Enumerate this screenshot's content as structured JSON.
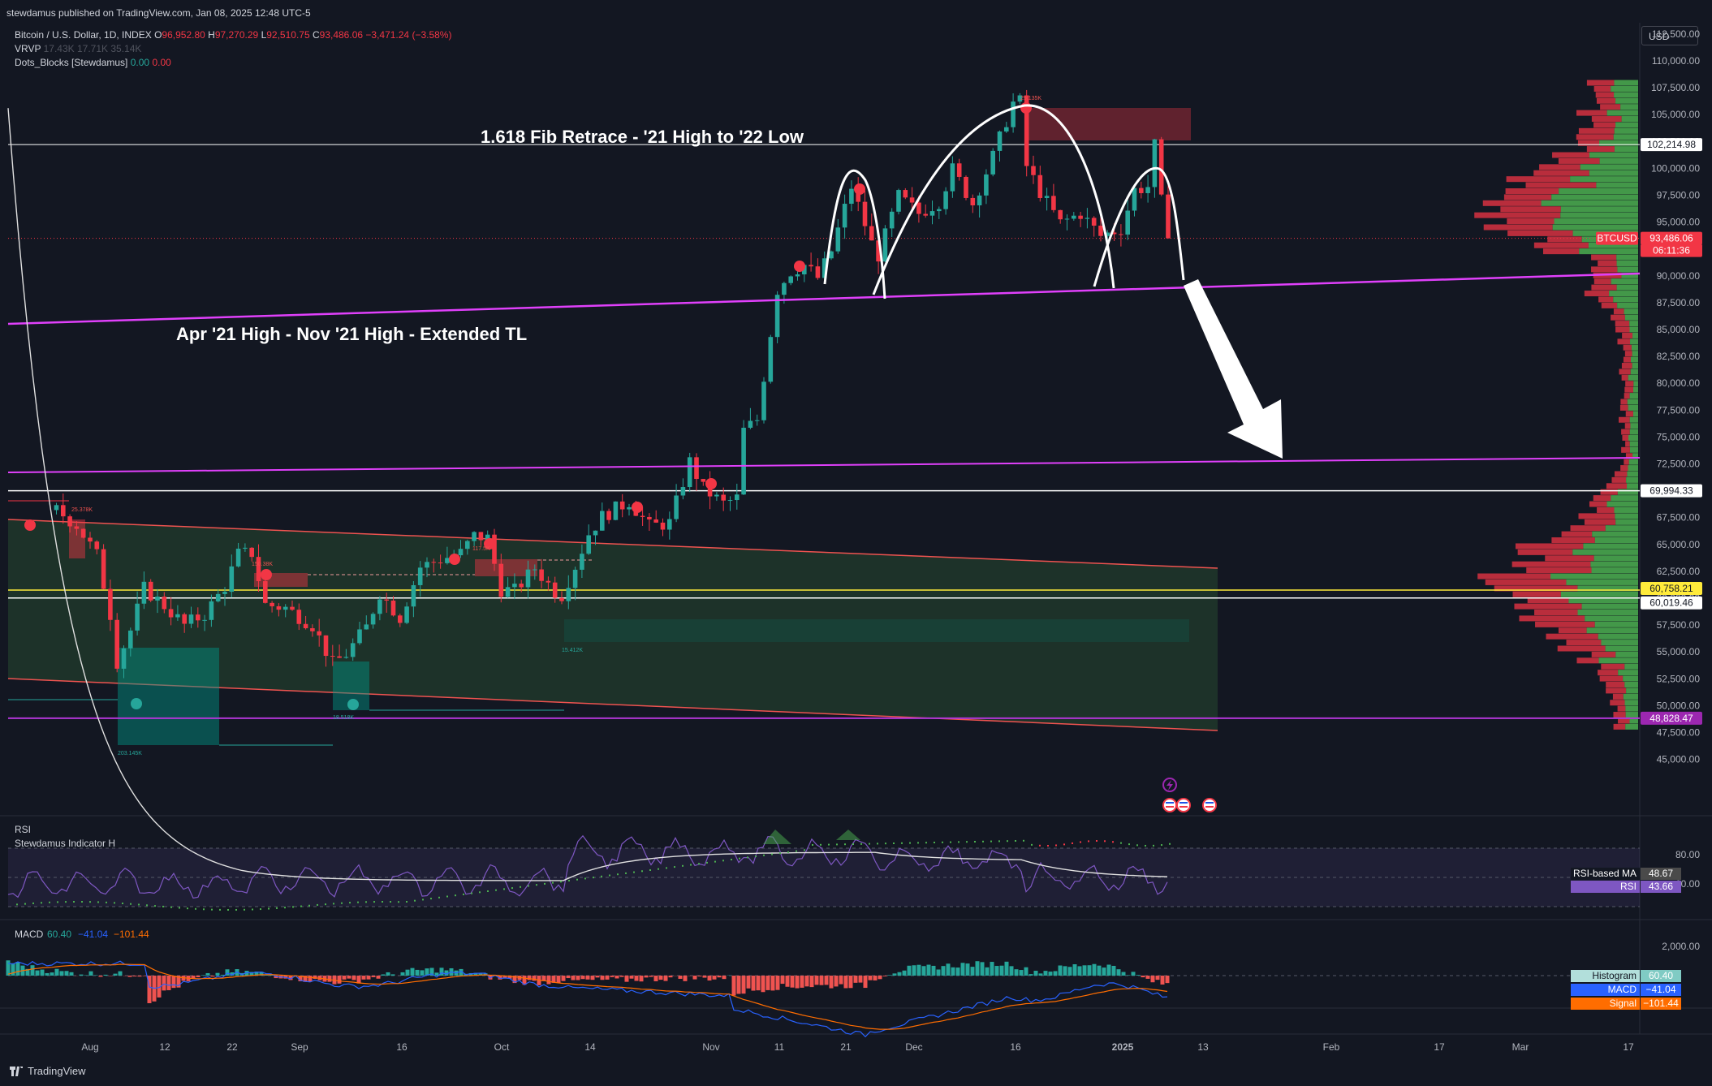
{
  "header": {
    "published": "stewdamus published on TradingView.com, Jan 08, 2025 12:48 UTC-5",
    "symbol": "Bitcoin / U.S. Dollar, 1D, INDEX",
    "ohlc": {
      "o_label": "O",
      "o": "96,952.80",
      "h_label": "H",
      "h": "97,270.29",
      "l_label": "L",
      "l": "92,510.75",
      "c_label": "C",
      "c": "93,486.06",
      "chg": "−3,471.24 (−3.58%)"
    },
    "vrvp_label": "VRVP",
    "vrvp_values": [
      "17.43K",
      "17.71K",
      "35.14K"
    ],
    "dots_label": "Dots_Blocks [Stewdamus]",
    "dots_values": [
      "0.00",
      "0.00"
    ],
    "currency": "USD"
  },
  "brand": "TradingView",
  "colors": {
    "bg": "#131722",
    "up": "#26a69a",
    "down": "#f23645",
    "magenta": "#e040fb",
    "yellow": "#ffeb3b",
    "white": "#ffffff",
    "channel": "#ef5350"
  },
  "chart_data": [
    {
      "type": "candlestick",
      "title": "Bitcoin / U.S. Dollar, 1D, INDEX",
      "x_ticks": [
        "Aug",
        "12",
        "22",
        "Sep",
        "16",
        "Oct",
        "14",
        "Nov",
        "11",
        "21",
        "Dec",
        "16",
        "2025",
        "13",
        "Feb",
        "17",
        "Mar",
        "17"
      ],
      "y_ticks": [
        "112,500.00",
        "110,000.00",
        "107,500.00",
        "105,000.00",
        "102,500.00",
        "100,000.00",
        "97,500.00",
        "95,000.00",
        "92,500.00",
        "90,000.00",
        "87,500.00",
        "85,000.00",
        "82,500.00",
        "80,000.00",
        "77,500.00",
        "75,000.00",
        "72,500.00",
        "70,000.00",
        "67,500.00",
        "65,000.00",
        "62,500.00",
        "60,000.00",
        "57,500.00",
        "55,000.00",
        "52,500.00",
        "50,000.00",
        "47,500.00",
        "45,000.00"
      ],
      "ylim": [
        43500,
        114000
      ],
      "scale": "linear",
      "close_series_approx": [
        [
          "Jul 27",
          68200
        ],
        [
          "Jul 30",
          66800
        ],
        [
          "Aug 2",
          64000
        ],
        [
          "Aug 4",
          58500
        ],
        [
          "Aug 5",
          54100
        ],
        [
          "Aug 7",
          57000
        ],
        [
          "Aug 9",
          60900
        ],
        [
          "Aug 12",
          59300
        ],
        [
          "Aug 15",
          57500
        ],
        [
          "Aug 18",
          58500
        ],
        [
          "Aug 21",
          61100
        ],
        [
          "Aug 23",
          64100
        ],
        [
          "Aug 25",
          64200
        ],
        [
          "Aug 27",
          59400
        ],
        [
          "Aug 30",
          59100
        ],
        [
          "Sep 3",
          57500
        ],
        [
          "Sep 6",
          53900
        ],
        [
          "Sep 8",
          54800
        ],
        [
          "Sep 11",
          57300
        ],
        [
          "Sep 13",
          60500
        ],
        [
          "Sep 16",
          58200
        ],
        [
          "Sep 19",
          62900
        ],
        [
          "Sep 22",
          63600
        ],
        [
          "Sep 25",
          64200
        ],
        [
          "Sep 27",
          65800
        ],
        [
          "Sep 29",
          65600
        ],
        [
          "Oct 1",
          60800
        ],
        [
          "Oct 3",
          60700
        ],
        [
          "Oct 6",
          62800
        ],
        [
          "Oct 9",
          60600
        ],
        [
          "Oct 10",
          60300
        ],
        [
          "Oct 12",
          63000
        ],
        [
          "Oct 14",
          66000
        ],
        [
          "Oct 16",
          67600
        ],
        [
          "Oct 20",
          69000
        ],
        [
          "Oct 23",
          66700
        ],
        [
          "Oct 26",
          67000
        ],
        [
          "Oct 29",
          72700
        ],
        [
          "Oct 31",
          70200
        ],
        [
          "Nov 3",
          68800
        ],
        [
          "Nov 5",
          69300
        ],
        [
          "Nov 6",
          75600
        ],
        [
          "Nov 8",
          76600
        ],
        [
          "Nov 11",
          88700
        ],
        [
          "Nov 13",
          90400
        ],
        [
          "Nov 15",
          91000
        ],
        [
          "Nov 17",
          89800
        ],
        [
          "Nov 19",
          92300
        ],
        [
          "Nov 22",
          98300
        ],
        [
          "Nov 25",
          93000
        ],
        [
          "Nov 26",
          91900
        ],
        [
          "Nov 29",
          97400
        ],
        [
          "Dec 2",
          95800
        ],
        [
          "Dec 5",
          96900
        ],
        [
          "Dec 7",
          99900
        ],
        [
          "Dec 10",
          96700
        ],
        [
          "Dec 13",
          101100
        ],
        [
          "Dec 16",
          106100
        ],
        [
          "Dec 17",
          106200
        ],
        [
          "Dec 18",
          100200
        ],
        [
          "Dec 20",
          97800
        ],
        [
          "Dec 23",
          94900
        ],
        [
          "Dec 26",
          95800
        ],
        [
          "Dec 29",
          93700
        ],
        [
          "Jan 1",
          94400
        ],
        [
          "Jan 3",
          98000
        ],
        [
          "Jan 5",
          98300
        ],
        [
          "Jan 6",
          102100
        ],
        [
          "Jan 7",
          96900
        ],
        [
          "Jan 8",
          93486
        ]
      ]
    },
    {
      "type": "line",
      "title": "RSI",
      "series": [
        {
          "name": "RSI-based MA",
          "last": "48.67"
        },
        {
          "name": "RSI",
          "last": "43.66"
        }
      ],
      "indicator": "Stewdamus Indicator H",
      "y_ticks": [
        "80.00",
        "60.00"
      ]
    },
    {
      "type": "bar",
      "title": "MACD",
      "params": [
        "60.40",
        "−41.04",
        "−101.44"
      ],
      "series": [
        {
          "name": "Histogram",
          "last": "60.40"
        },
        {
          "name": "MACD",
          "last": "−41.04"
        },
        {
          "name": "Signal",
          "last": "−101.44"
        }
      ],
      "y_ticks": [
        "2,000.00"
      ]
    }
  ],
  "annotations": {
    "fib_text": "1.618 Fib Retrace - '21 High to '22 Low",
    "tl_text": "Apr '21 High - Nov '21 High - Extended TL",
    "ob_labels": [
      "25.378K",
      "150.38K",
      "117.5K",
      "15.412K",
      "203.145K",
      "18.518K",
      "29.135K"
    ]
  },
  "price_labels": [
    {
      "text": "102,214.98",
      "value": 102214.98,
      "style": "white"
    },
    {
      "text": "BTCUSD",
      "value": 93486.06,
      "style": "ticker"
    },
    {
      "text": "93,486.06",
      "value": 93486.06,
      "style": "red"
    },
    {
      "text": "06:11:36",
      "value": 93486.06,
      "style": "timer"
    },
    {
      "text": "69,994.33",
      "value": 69994.33,
      "style": "white"
    },
    {
      "text": "60,758.21",
      "value": 60758.21,
      "style": "yellow"
    },
    {
      "text": "60,019.46",
      "value": 60019.46,
      "style": "white"
    },
    {
      "text": "48,828.47",
      "value": 48828.47,
      "style": "magenta"
    }
  ]
}
